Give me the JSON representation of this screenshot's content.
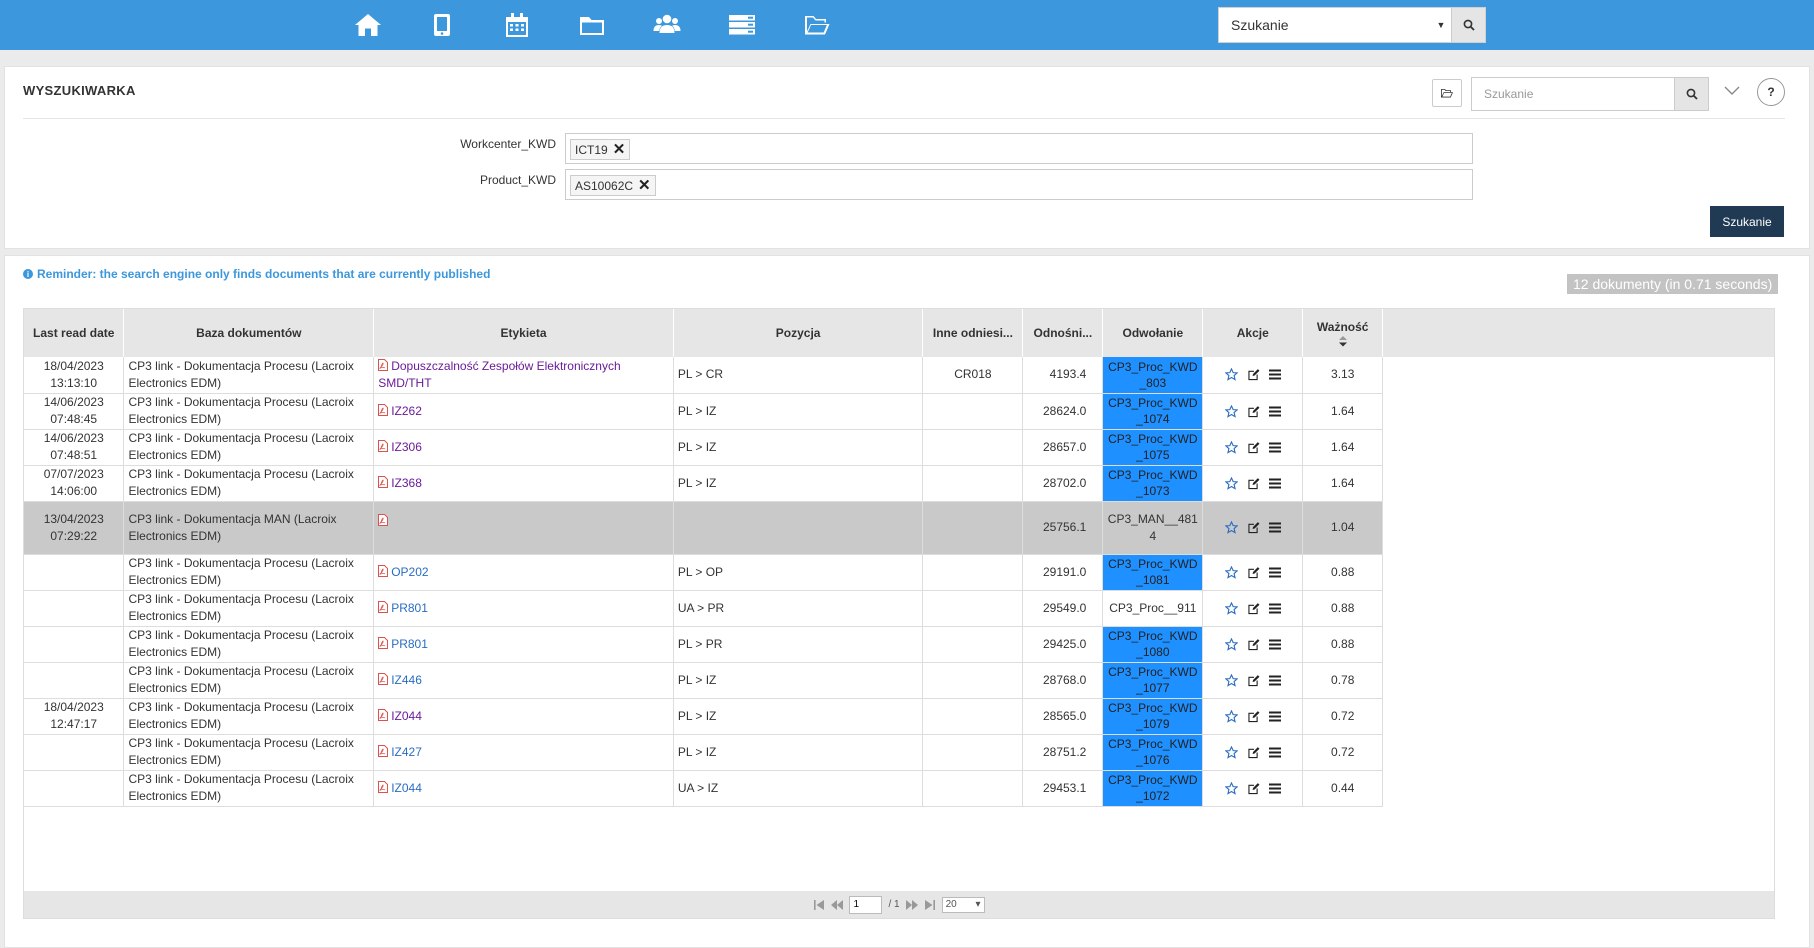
{
  "topbar": {
    "icons": [
      "home-icon",
      "tablet-icon",
      "calendar-icon",
      "folder-icon",
      "users-icon",
      "server-icon",
      "folder-open-icon"
    ],
    "search": {
      "value": "Szukanie"
    }
  },
  "search_panel": {
    "title": "WYSZUKIWARKA",
    "search_placeholder": "Szukanie",
    "help_label": "?",
    "fields": [
      {
        "label": "Workcenter_KWD",
        "tag": "ICT19"
      },
      {
        "label": "Product_KWD",
        "tag": "AS10062C"
      }
    ],
    "search_button": "Szukanie"
  },
  "results": {
    "reminder": "Reminder: the search engine only finds documents that are currently published",
    "count": "12 dokumenty (in 0.71 seconds)",
    "columns": [
      "Last read date",
      "Baza dokumentów",
      "Etykieta",
      "Pozycja",
      "Inne odniesi...",
      "Odnośni...",
      "Odwołanie",
      "Akcje",
      "Ważność"
    ],
    "rows": [
      {
        "date": "18/04/2023",
        "time": "13:13:10",
        "base": "CP3 link - Dokumentacja Procesu (Lacroix Electronics EDM)",
        "label": "Dopuszczalność Zespołów Elektronicznych SMD/THT",
        "label_visited": true,
        "pozycja": "PL > CR",
        "inne": "CR018",
        "odn": "4193.4",
        "odw": "CP3_Proc_KWD_803",
        "odw_blue": true,
        "waz": "3.13"
      },
      {
        "date": "14/06/2023",
        "time": "07:48:45",
        "base": "CP3 link - Dokumentacja Procesu (Lacroix Electronics EDM)",
        "label": "IZ262",
        "label_visited": true,
        "pozycja": "PL > IZ",
        "inne": "",
        "odn": "28624.0",
        "odw": "CP3_Proc_KWD_1074",
        "odw_blue": true,
        "waz": "1.64"
      },
      {
        "date": "14/06/2023",
        "time": "07:48:51",
        "base": "CP3 link - Dokumentacja Procesu (Lacroix Electronics EDM)",
        "label": "IZ306",
        "label_visited": true,
        "pozycja": "PL > IZ",
        "inne": "",
        "odn": "28657.0",
        "odw": "CP3_Proc_KWD_1075",
        "odw_blue": true,
        "waz": "1.64"
      },
      {
        "date": "07/07/2023",
        "time": "14:06:00",
        "base": "CP3 link - Dokumentacja Procesu (Lacroix Electronics EDM)",
        "label": "IZ368",
        "label_visited": true,
        "pozycja": "PL > IZ",
        "inne": "",
        "odn": "28702.0",
        "odw": "CP3_Proc_KWD_1073",
        "odw_blue": true,
        "waz": "1.64"
      },
      {
        "date": "13/04/2023",
        "time": "07:29:22",
        "base": "CP3 link - Dokumentacja MAN (Lacroix Electronics EDM)",
        "label": "",
        "label_visited": false,
        "pozycja": "",
        "inne": "",
        "odn": "25756.1",
        "odw": "CP3_MAN__4814",
        "odw_blue": false,
        "waz": "1.04",
        "highlight": true
      },
      {
        "date": "",
        "time": "",
        "base": "CP3 link - Dokumentacja Procesu (Lacroix Electronics EDM)",
        "label": "OP202",
        "label_visited": false,
        "pozycja": "PL > OP",
        "inne": "",
        "odn": "29191.0",
        "odw": "CP3_Proc_KWD_1081",
        "odw_blue": true,
        "waz": "0.88"
      },
      {
        "date": "",
        "time": "",
        "base": "CP3 link - Dokumentacja Procesu (Lacroix Electronics EDM)",
        "label": "PR801",
        "label_visited": false,
        "pozycja": "UA > PR",
        "inne": "",
        "odn": "29549.0",
        "odw": "CP3_Proc__911",
        "odw_blue": false,
        "waz": "0.88"
      },
      {
        "date": "",
        "time": "",
        "base": "CP3 link - Dokumentacja Procesu (Lacroix Electronics EDM)",
        "label": "PR801",
        "label_visited": false,
        "pozycja": "PL > PR",
        "inne": "",
        "odn": "29425.0",
        "odw": "CP3_Proc_KWD_1080",
        "odw_blue": true,
        "waz": "0.88"
      },
      {
        "date": "",
        "time": "",
        "base": "CP3 link - Dokumentacja Procesu (Lacroix Electronics EDM)",
        "label": "IZ446",
        "label_visited": false,
        "pozycja": "PL > IZ",
        "inne": "",
        "odn": "28768.0",
        "odw": "CP3_Proc_KWD_1077",
        "odw_blue": true,
        "waz": "0.78"
      },
      {
        "date": "18/04/2023",
        "time": "12:47:17",
        "base": "CP3 link - Dokumentacja Procesu (Lacroix Electronics EDM)",
        "label": "IZ044",
        "label_visited": true,
        "pozycja": "PL > IZ",
        "inne": "",
        "odn": "28565.0",
        "odw": "CP3_Proc_KWD_1079",
        "odw_blue": true,
        "waz": "0.72"
      },
      {
        "date": "",
        "time": "",
        "base": "CP3 link - Dokumentacja Procesu (Lacroix Electronics EDM)",
        "label": "IZ427",
        "label_visited": false,
        "pozycja": "PL > IZ",
        "inne": "",
        "odn": "28751.2",
        "odw": "CP3_Proc_KWD_1076",
        "odw_blue": true,
        "waz": "0.72"
      },
      {
        "date": "",
        "time": "",
        "base": "CP3 link - Dokumentacja Procesu (Lacroix Electronics EDM)",
        "label": "IZ044",
        "label_visited": false,
        "pozycja": "UA > IZ",
        "inne": "",
        "odn": "29453.1",
        "odw": "CP3_Proc_KWD_1072",
        "odw_blue": true,
        "waz": "0.44"
      }
    ]
  },
  "pager": {
    "page": "1",
    "total": "/ 1",
    "page_size": "20"
  },
  "colors": {
    "topbar": "#3c97dc",
    "accent_blue": "#1e90ff",
    "button_dark": "#1f3a52",
    "highlight_row": "#c9c9c9"
  }
}
